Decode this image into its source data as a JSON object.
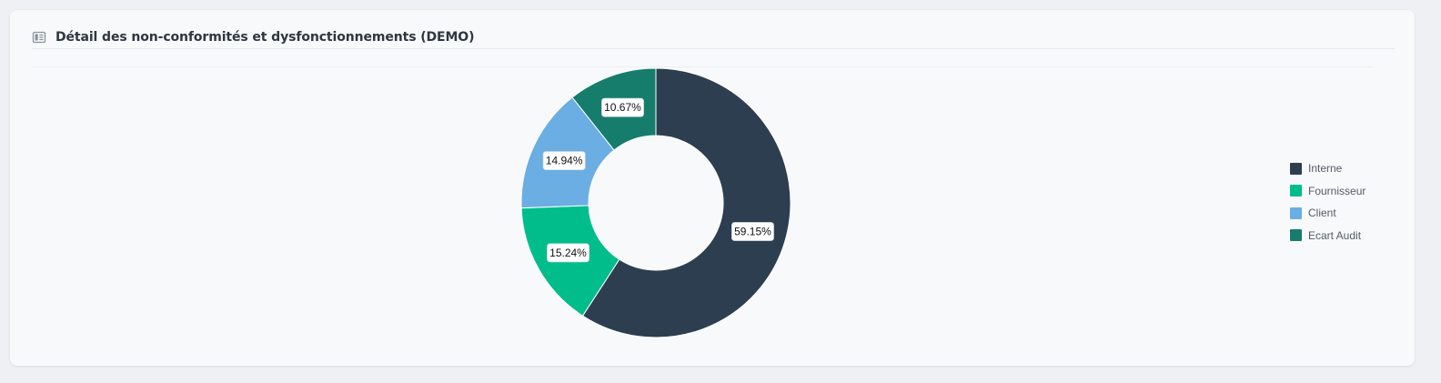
{
  "card": {
    "title": "Détail des non-conformités et dysfonctionnements (DEMO)",
    "icon": "report-icon"
  },
  "chart_data": {
    "type": "pie",
    "donut": true,
    "title": "Détail des non-conformités et dysfonctionnements (DEMO)",
    "legend_position": "right",
    "slices": [
      {
        "name": "Interne",
        "value": 59.15,
        "label": "59.15%",
        "color": "#2c3e50"
      },
      {
        "name": "Fournisseur",
        "value": 15.24,
        "label": "15.24%",
        "color": "#00bd8b"
      },
      {
        "name": "Client",
        "value": 14.94,
        "label": "14.94%",
        "color": "#6aaee3"
      },
      {
        "name": "Ecart Audit",
        "value": 10.67,
        "label": "10.67%",
        "color": "#167d6c"
      }
    ]
  }
}
